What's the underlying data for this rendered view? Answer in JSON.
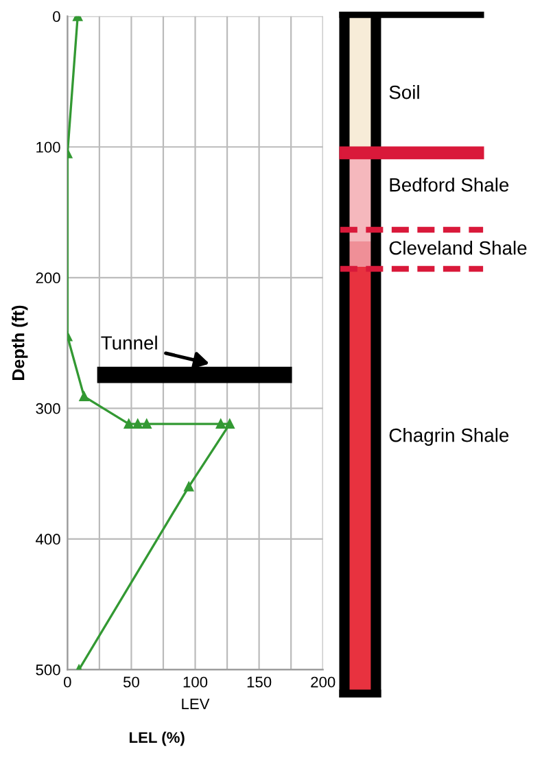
{
  "chart_data": [
    {
      "type": "line",
      "xlabel": "LEV",
      "ylabel": "Depth (ft)",
      "series": [
        {
          "color": "#339933",
          "x": [
            8,
            0,
            0,
            13,
            48,
            55,
            62,
            120,
            127,
            95,
            9
          ],
          "values": [
            0,
            105,
            245,
            291,
            312,
            312,
            312,
            312,
            312,
            360,
            500
          ]
        }
      ],
      "xlim": [
        0,
        200
      ],
      "ylim": [
        500,
        0
      ],
      "xticks": [
        0,
        {
          "value": 25,
          "label": null
        },
        50,
        {
          "value": 75,
          "label": null
        },
        100,
        {
          "value": 125,
          "label": null
        },
        150,
        {
          "value": 175,
          "label": null
        },
        200
      ],
      "yticks": [
        0,
        100,
        200,
        300,
        400,
        500
      ],
      "grid": true,
      "marker": "triangle",
      "line_style": "solid",
      "annotations": [
        "Tunnel",
        "LEL (%)"
      ]
    },
    {
      "type": "other",
      "annotations": [
        "Soil",
        "Bedford Shale",
        "Cleveland Shale",
        "Chagrin Shale"
      ]
    }
  ]
}
